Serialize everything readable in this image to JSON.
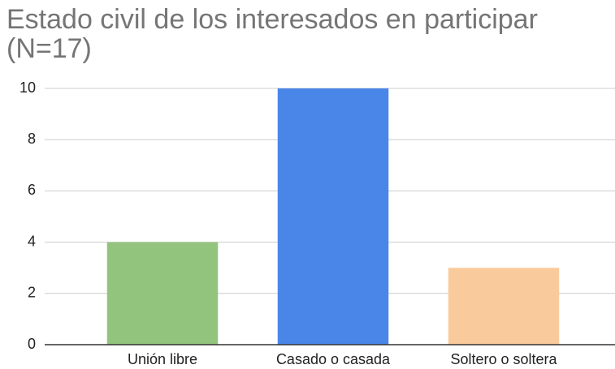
{
  "chart_data": {
    "type": "bar",
    "title": "Estado civil de los interesados en participar (N=17)",
    "categories": [
      "Unión libre",
      "Casado o casada",
      "Soltero o soltera"
    ],
    "values": [
      4,
      10,
      3
    ],
    "colors": [
      "#93c47d",
      "#4a86e8",
      "#f9cb9c"
    ],
    "ylim": [
      0,
      10
    ],
    "yticks": [
      0,
      2,
      4,
      6,
      8,
      10
    ],
    "grid": true
  }
}
